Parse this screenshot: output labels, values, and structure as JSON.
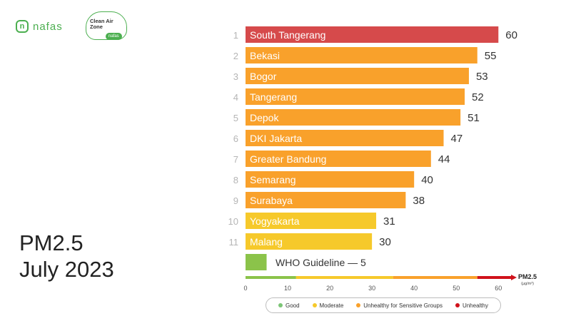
{
  "brand": {
    "logo": "nafas",
    "badge_line1": "Clean Air",
    "badge_line2": "Zone",
    "badge_tag": "nafas"
  },
  "title": {
    "line1": "PM2.5",
    "line2": "July 2023"
  },
  "chart_data": {
    "type": "bar",
    "orientation": "horizontal",
    "ranks": [
      "1",
      "2",
      "3",
      "4",
      "5",
      "6",
      "7",
      "8",
      "9",
      "10",
      "11"
    ],
    "categories": [
      "South Tangerang",
      "Bekasi",
      "Bogor",
      "Tangerang",
      "Depok",
      "DKI Jakarta",
      "Greater Bandung",
      "Semarang",
      "Surabaya",
      "Yogyakarta",
      "Malang"
    ],
    "values": [
      60,
      55,
      53,
      52,
      51,
      47,
      44,
      40,
      38,
      31,
      30
    ],
    "bar_colors": [
      "#d64a4b",
      "#f9a12b",
      "#f9a12b",
      "#f9a12b",
      "#f9a12b",
      "#f9a12b",
      "#f9a12b",
      "#f9a12b",
      "#f9a12b",
      "#f6c92b",
      "#f6c92b"
    ],
    "reference": {
      "label": "WHO Guideline — 5",
      "value": 5,
      "color": "#8bc34a"
    },
    "xlim": [
      0,
      63
    ],
    "xticks": [
      0,
      10,
      20,
      30,
      40,
      50,
      60
    ],
    "axis_label": "PM2.5",
    "axis_unit": "(µg/m³)",
    "scale_bands": [
      {
        "from": 0,
        "to": 12,
        "color": "#8bc34a"
      },
      {
        "from": 12,
        "to": 35,
        "color": "#f6c92b"
      },
      {
        "from": 35,
        "to": 55,
        "color": "#f9a12b"
      },
      {
        "from": 55,
        "to": 63,
        "color": "#d0121b"
      }
    ],
    "legend": [
      {
        "label": "Good",
        "color": "#7cc576"
      },
      {
        "label": "Moderate",
        "color": "#f6c92b"
      },
      {
        "label": "Unhealthy for  Sensitive Groups",
        "color": "#f9a12b"
      },
      {
        "label": "Unhealthy",
        "color": "#d0121b"
      }
    ]
  }
}
